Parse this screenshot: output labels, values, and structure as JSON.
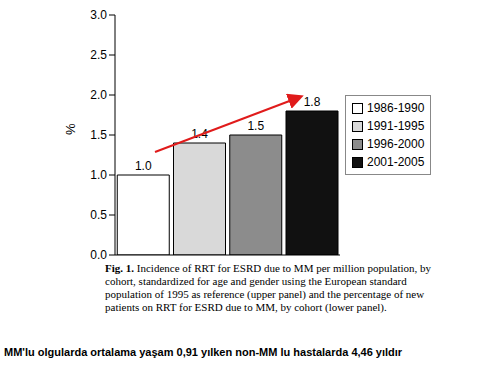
{
  "chart_data": {
    "type": "bar",
    "y_label": "%",
    "categories": [
      "1986-1990",
      "1991-1995",
      "1996-2000",
      "2001-2005"
    ],
    "values": [
      1.0,
      1.4,
      1.5,
      1.8
    ],
    "value_labels": [
      "1.0",
      "1.4",
      "1.5",
      "1.8"
    ],
    "colors": [
      "#ffffff",
      "#d9d9d9",
      "#8c8c8c",
      "#111111"
    ],
    "ylim": [
      0,
      3
    ],
    "yticks": [
      {
        "value": 0,
        "label": "0.0"
      },
      0.5,
      {
        "value": 1,
        "label": "1.0"
      },
      1.5,
      {
        "value": 2,
        "label": "2.0"
      },
      2.5,
      {
        "value": 3,
        "label": "3.0"
      }
    ],
    "grid": false,
    "data_labels": true,
    "tick_labels": "y",
    "legend": "right",
    "annotations": [
      "Fig. 1. Incidence of RRT for ESRD due to MM per million population, by cohort, standardized for age and gender using the European standard population of 1995 as reference (upper panel) and the percentage of new patients on RRT for ESRD due to MM, by cohort (lower panel).",
      "MM'lu olgularda ortalama yaşam 0,91 yılken non-MM lu hastalarda 4,46 yıldır"
    ]
  }
}
